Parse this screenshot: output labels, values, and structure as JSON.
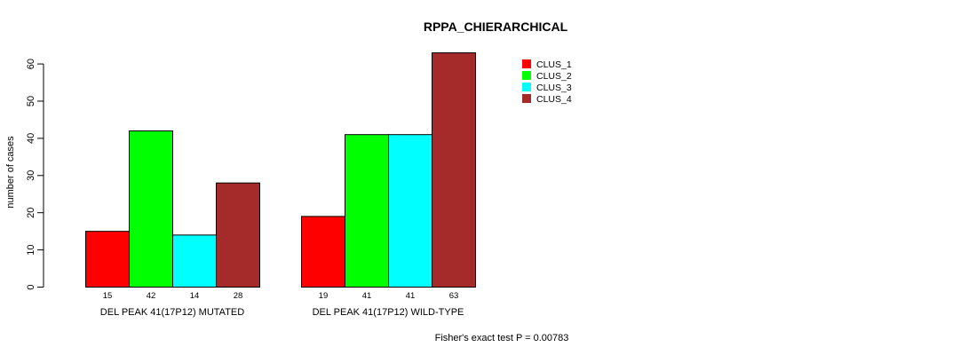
{
  "chart_data": {
    "type": "bar",
    "title": "RPPA_CHIERARCHICAL",
    "ylabel": "number of cases",
    "xlabel": "",
    "ylim": [
      0,
      63
    ],
    "yticks": [
      0,
      10,
      20,
      30,
      40,
      50,
      60
    ],
    "grid": false,
    "legend_position": "top-right",
    "groups": [
      "DEL PEAK 41(17P12) MUTATED",
      "DEL PEAK 41(17P12) WILD-TYPE"
    ],
    "series": [
      {
        "name": "CLUS_1",
        "color": "#ff0000",
        "values": [
          15,
          19
        ]
      },
      {
        "name": "CLUS_2",
        "color": "#00ff00",
        "values": [
          42,
          41
        ]
      },
      {
        "name": "CLUS_3",
        "color": "#00ffff",
        "values": [
          14,
          41
        ]
      },
      {
        "name": "CLUS_4",
        "color": "#a52a2a",
        "values": [
          28,
          63
        ]
      }
    ],
    "footnote": "Fisher's exact test P = 0.00783"
  }
}
